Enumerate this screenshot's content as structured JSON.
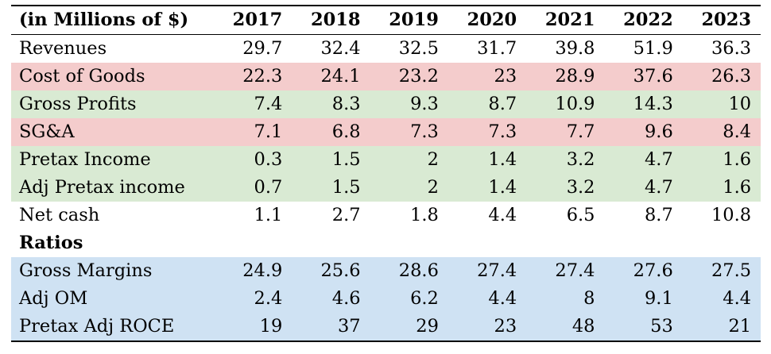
{
  "table": {
    "header": {
      "label": "(in Millions of $)",
      "years": [
        "2017",
        "2018",
        "2019",
        "2020",
        "2021",
        "2022",
        "2023"
      ]
    },
    "rows": [
      {
        "label": "Revenues",
        "bg": "none",
        "values": [
          "29.7",
          "32.4",
          "32.5",
          "31.7",
          "39.8",
          "51.9",
          "36.3"
        ]
      },
      {
        "label": "Cost of Goods",
        "bg": "red",
        "values": [
          "22.3",
          "24.1",
          "23.2",
          "23",
          "28.9",
          "37.6",
          "26.3"
        ]
      },
      {
        "label": "Gross Profits",
        "bg": "green",
        "values": [
          "7.4",
          "8.3",
          "9.3",
          "8.7",
          "10.9",
          "14.3",
          "10"
        ]
      },
      {
        "label": "SG&A",
        "bg": "red",
        "values": [
          "7.1",
          "6.8",
          "7.3",
          "7.3",
          "7.7",
          "9.6",
          "8.4"
        ]
      },
      {
        "label": "Pretax Income",
        "bg": "green",
        "values": [
          "0.3",
          "1.5",
          "2",
          "1.4",
          "3.2",
          "4.7",
          "1.6"
        ]
      },
      {
        "label": "Adj Pretax income",
        "bg": "green",
        "values": [
          "0.7",
          "1.5",
          "2",
          "1.4",
          "3.2",
          "4.7",
          "1.6"
        ]
      },
      {
        "label": "Net cash",
        "bg": "none",
        "values": [
          "1.1",
          "2.7",
          "1.8",
          "4.4",
          "6.5",
          "8.7",
          "10.8"
        ]
      }
    ],
    "section_label": "Ratios",
    "ratio_rows": [
      {
        "label": "Gross Margins",
        "bg": "blue",
        "values": [
          "24.9",
          "25.6",
          "28.6",
          "27.4",
          "27.4",
          "27.6",
          "27.5"
        ]
      },
      {
        "label": "Adj OM",
        "bg": "blue",
        "values": [
          "2.4",
          "4.6",
          "6.2",
          "4.4",
          "8",
          "9.1",
          "4.4"
        ]
      },
      {
        "label": "Pretax Adj ROCE",
        "bg": "blue",
        "values": [
          "19",
          "37",
          "29",
          "23",
          "48",
          "53",
          "21"
        ]
      }
    ]
  },
  "colors": {
    "red": "#f4cccc",
    "green": "#d9ead3",
    "blue": "#cfe2f3"
  }
}
